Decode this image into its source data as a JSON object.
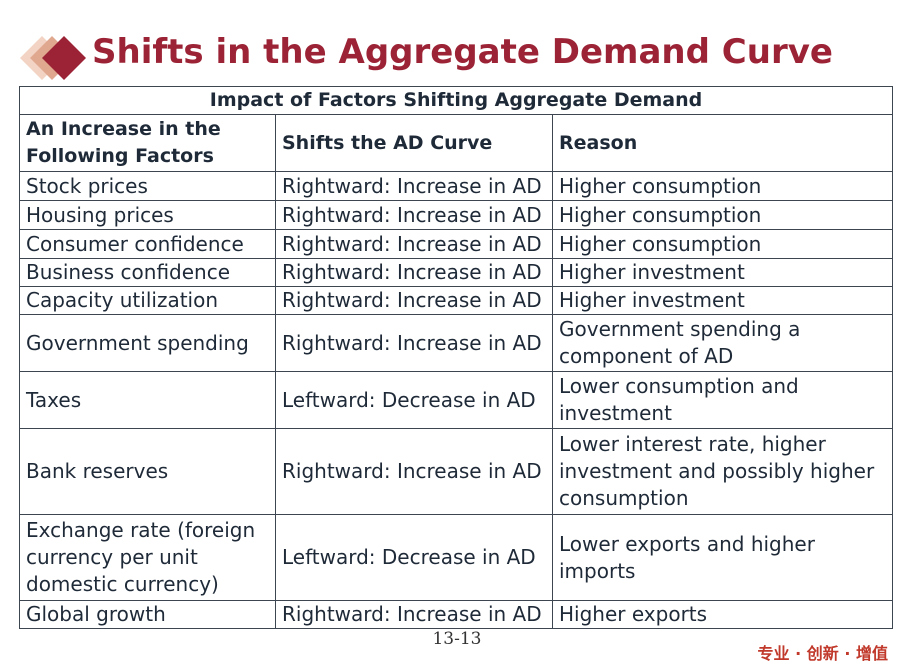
{
  "slide": {
    "title": "Shifts in the Aggregate Demand Curve",
    "page_number": "13-13",
    "slogan": "专业 · 创新 · 增值",
    "colors": {
      "title": "#9b2335",
      "diamond_dark": "#9b2335",
      "diamond_light": "#e8b4a0",
      "slogan": "#c0392b"
    }
  },
  "table": {
    "caption": "Impact of Factors Shifting Aggregate Demand",
    "headers": [
      "An Increase in the Following Factors",
      "Shifts the AD Curve",
      "Reason"
    ],
    "rows": [
      {
        "factor": "Stock prices",
        "shift": "Rightward: Increase in AD",
        "reason": "Higher consumption"
      },
      {
        "factor": "Housing prices",
        "shift": "Rightward: Increase in AD",
        "reason": "Higher consumption"
      },
      {
        "factor": "Consumer confidence",
        "shift": "Rightward: Increase in AD",
        "reason": "Higher consumption"
      },
      {
        "factor": "Business confidence",
        "shift": "Rightward: Increase in AD",
        "reason": "Higher investment"
      },
      {
        "factor": "Capacity utilization",
        "shift": "Rightward: Increase in AD",
        "reason": "Higher investment"
      },
      {
        "factor": "Government spending",
        "shift": "Rightward: Increase in AD",
        "reason": "Government spending a component of AD"
      },
      {
        "factor": "Taxes",
        "shift": "Leftward: Decrease in AD",
        "reason": "Lower consumption and investment"
      },
      {
        "factor": "Bank reserves",
        "shift": "Rightward: Increase in AD",
        "reason": "Lower interest rate, higher investment and possibly higher consumption"
      },
      {
        "factor": "Exchange rate (foreign currency per unit domestic currency)",
        "shift": "Leftward: Decrease in AD",
        "reason": "Lower exports and higher imports"
      },
      {
        "factor": "Global growth",
        "shift": "Rightward: Increase in AD",
        "reason": "Higher exports"
      }
    ]
  }
}
